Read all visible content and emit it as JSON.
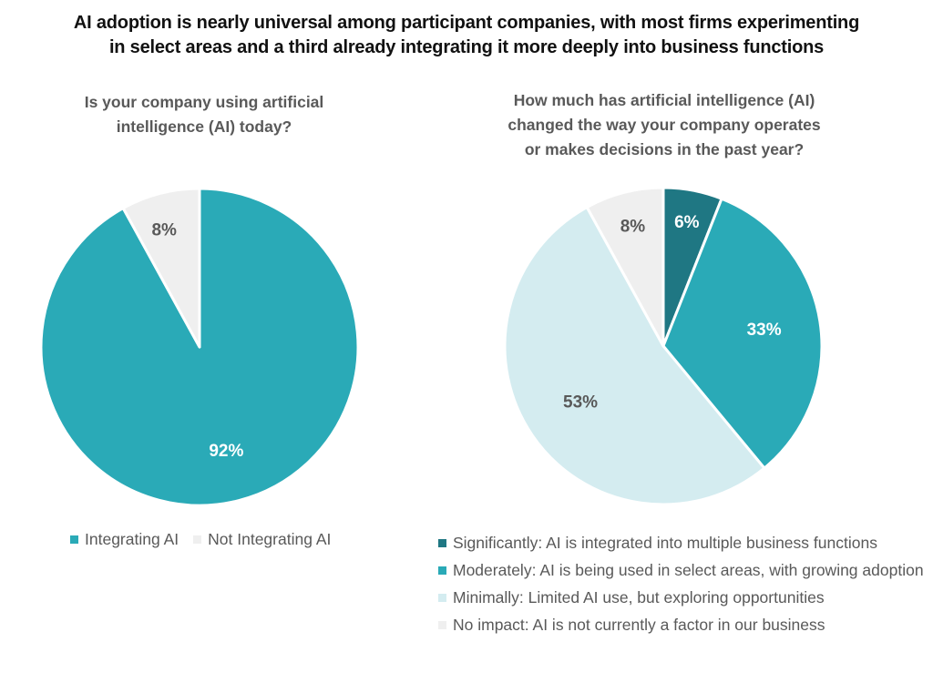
{
  "title": {
    "line1": "AI adoption is nearly universal among participant companies, with most firms experimenting",
    "line2": "in select areas and a third already integrating it more deeply into business functions"
  },
  "colors": {
    "dark_teal": "#1f7783",
    "teal": "#2aaab7",
    "light_teal": "#d4ecf0",
    "light_gray": "#efefef",
    "label_white": "#ffffff",
    "label_gray": "#595959"
  },
  "chart_data": [
    {
      "type": "pie",
      "title": "Is your company using artificial intelligence (AI) today?",
      "title_lines": [
        "Is your company using artificial",
        "intelligence (AI) today?"
      ],
      "start": "12 o'clock, clockwise",
      "slices": [
        {
          "label": "Integrating AI",
          "value": 92,
          "display": "92%",
          "color": "#2aaab7",
          "label_color": "#ffffff"
        },
        {
          "label": "Not Integrating AI",
          "value": 8,
          "display": "8%",
          "color": "#efefef",
          "label_color": "#595959"
        }
      ],
      "legend_position": "bottom-left"
    },
    {
      "type": "pie",
      "title": "How much has artificial intelligence (AI) changed the way your company operates or makes decisions in the past year?",
      "title_lines": [
        "How much has artificial intelligence (AI)",
        "changed the way your company operates",
        "or makes decisions in the past year?"
      ],
      "start": "12 o'clock, clockwise",
      "slices": [
        {
          "label": "Significantly: AI is integrated into multiple business functions",
          "value": 6,
          "display": "6%",
          "color": "#1f7783",
          "label_color": "#ffffff"
        },
        {
          "label": "Moderately: AI is being used in select areas, with growing adoption",
          "value": 33,
          "display": "33%",
          "color": "#2aaab7",
          "label_color": "#ffffff"
        },
        {
          "label": "Minimally: Limited AI use, but exploring opportunities",
          "value": 53,
          "display": "53%",
          "color": "#d4ecf0",
          "label_color": "#595959"
        },
        {
          "label": "No impact: AI is not currently a factor in our business",
          "value": 8,
          "display": "8%",
          "color": "#efefef",
          "label_color": "#595959"
        }
      ],
      "legend_position": "bottom"
    }
  ]
}
